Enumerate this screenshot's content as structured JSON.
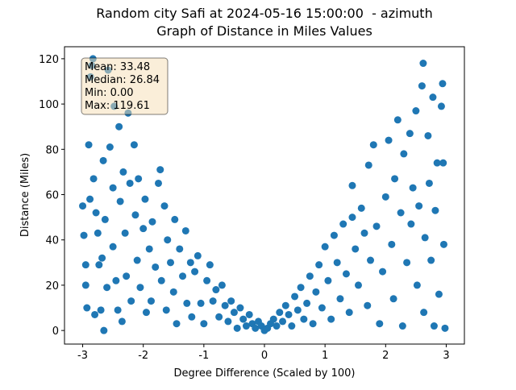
{
  "chart_data": {
    "type": "scatter",
    "title": "Random city Safi at 2024-05-16 15:00:00  - azimuth",
    "subtitle": "Graph of Distance in Miles Values",
    "x_label": "Degree Difference (Scaled by 100)",
    "y_label": "Distance (Miles)",
    "stats_box": [
      "Mean: 33.48",
      "Median: 26.84",
      "Min: 0.00",
      "Max: 119.61"
    ],
    "color": "#1f77b4",
    "xlim": [
      -3.3,
      3.3
    ],
    "xticks": [
      -3,
      -2,
      -1,
      0,
      1,
      2,
      3
    ],
    "ylim": [
      -6,
      125.3
    ],
    "yticks": [
      0,
      20,
      40,
      60,
      80,
      100,
      120
    ],
    "x": [
      -3.0,
      -2.98,
      -2.95,
      -2.95,
      -2.93,
      -2.9,
      -2.88,
      -2.87,
      -2.85,
      -2.83,
      -2.82,
      -2.8,
      -2.78,
      -2.75,
      -2.73,
      -2.7,
      -2.68,
      -2.66,
      -2.65,
      -2.63,
      -2.6,
      -2.58,
      -2.55,
      -2.5,
      -2.5,
      -2.48,
      -2.45,
      -2.42,
      -2.4,
      -2.38,
      -2.35,
      -2.33,
      -2.3,
      -2.28,
      -2.25,
      -2.22,
      -2.2,
      -2.15,
      -2.13,
      -2.1,
      -2.08,
      -2.05,
      -2.0,
      -1.97,
      -1.95,
      -1.9,
      -1.87,
      -1.85,
      -1.8,
      -1.75,
      -1.72,
      -1.7,
      -1.65,
      -1.62,
      -1.6,
      -1.55,
      -1.5,
      -1.48,
      -1.45,
      -1.4,
      -1.35,
      -1.3,
      -1.28,
      -1.22,
      -1.2,
      -1.15,
      -1.1,
      -1.05,
      -1.0,
      -0.95,
      -0.9,
      -0.85,
      -0.8,
      -0.75,
      -0.7,
      -0.65,
      -0.6,
      -0.55,
      -0.5,
      -0.45,
      -0.4,
      -0.35,
      -0.3,
      -0.25,
      -0.2,
      -0.15,
      -0.1,
      -0.05,
      0.0,
      0.05,
      0.1,
      0.15,
      0.2,
      0.25,
      0.3,
      0.35,
      0.4,
      0.45,
      0.5,
      0.55,
      0.6,
      0.65,
      0.7,
      0.75,
      0.8,
      0.85,
      0.9,
      0.95,
      1.0,
      1.05,
      1.1,
      1.15,
      1.2,
      1.25,
      1.3,
      1.35,
      1.4,
      1.45,
      1.45,
      1.5,
      1.55,
      1.6,
      1.65,
      1.7,
      1.72,
      1.75,
      1.8,
      1.85,
      1.9,
      1.95,
      2.0,
      2.05,
      2.1,
      2.13,
      2.15,
      2.2,
      2.25,
      2.28,
      2.3,
      2.35,
      2.4,
      2.42,
      2.45,
      2.5,
      2.52,
      2.55,
      2.6,
      2.62,
      2.63,
      2.65,
      2.7,
      2.72,
      2.75,
      2.78,
      2.8,
      2.82,
      2.85,
      2.88,
      2.92,
      2.94,
      2.96,
      2.98,
      2.95
    ],
    "values": [
      55,
      42,
      29,
      20,
      10,
      82,
      58,
      112,
      117,
      120,
      67,
      7,
      52,
      43,
      29,
      9,
      32,
      75,
      0,
      49,
      19,
      115,
      81,
      37,
      63,
      99,
      22,
      9,
      90,
      57,
      4,
      70,
      43,
      24,
      96,
      65,
      13,
      82,
      51,
      31,
      67,
      19,
      45,
      58,
      8,
      36,
      13,
      48,
      28,
      65,
      71,
      22,
      55,
      9,
      40,
      30,
      17,
      49,
      3,
      36,
      24,
      44,
      12,
      30,
      6,
      26,
      33,
      12,
      3,
      22,
      29,
      13,
      18,
      6,
      20,
      11,
      4,
      13,
      8,
      1,
      10,
      5,
      2,
      7,
      3,
      1,
      4,
      2,
      0,
      1,
      3,
      5,
      2,
      8,
      4,
      11,
      7,
      2,
      15,
      9,
      19,
      5,
      12,
      24,
      3,
      17,
      29,
      10,
      37,
      22,
      5,
      42,
      30,
      14,
      47,
      25,
      8,
      50,
      64,
      36,
      20,
      54,
      43,
      11,
      73,
      31,
      82,
      46,
      3,
      26,
      59,
      84,
      38,
      14,
      67,
      93,
      52,
      2,
      78,
      30,
      87,
      47,
      63,
      97,
      20,
      55,
      108,
      118,
      8,
      41,
      86,
      65,
      31,
      103,
      2,
      53,
      74,
      16,
      99,
      109,
      38,
      1,
      74
    ]
  }
}
